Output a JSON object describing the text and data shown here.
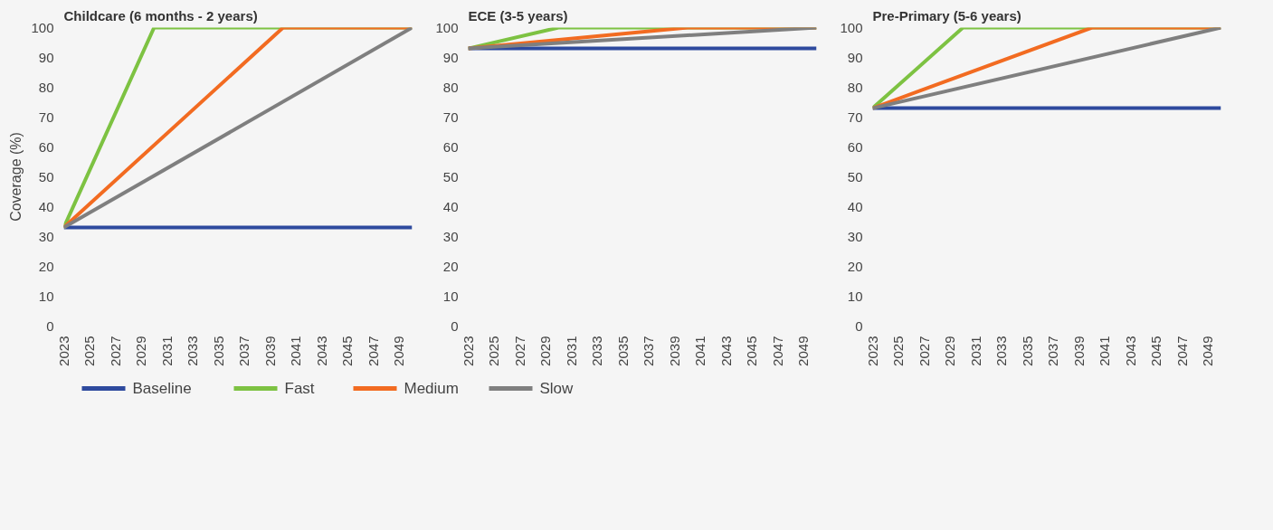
{
  "chart_data": [
    {
      "type": "line",
      "title": "Childcare (6 months - 2 years)",
      "ylabel": "Coverage (%)",
      "xlim": [
        2023,
        2050
      ],
      "xticks": [
        2023,
        2025,
        2027,
        2029,
        2031,
        2033,
        2035,
        2037,
        2039,
        2041,
        2043,
        2045,
        2047,
        2049
      ],
      "ylim": [
        0,
        100
      ],
      "yticks": [
        0,
        10,
        20,
        30,
        40,
        50,
        60,
        70,
        80,
        90,
        100
      ],
      "grid": false,
      "legend": "bottom",
      "series": [
        {
          "name": "Baseline",
          "color": "#2e4a9e",
          "x": [
            2023,
            2050
          ],
          "values": [
            33,
            33
          ]
        },
        {
          "name": "Fast",
          "color": "#7dc242",
          "x": [
            2023,
            2030,
            2050
          ],
          "values": [
            33,
            100,
            100
          ]
        },
        {
          "name": "Medium",
          "color": "#f26b21",
          "x": [
            2023,
            2040,
            2050
          ],
          "values": [
            33,
            100,
            100
          ]
        },
        {
          "name": "Slow",
          "color": "#7f7f7f",
          "x": [
            2023,
            2050
          ],
          "values": [
            33,
            100
          ]
        }
      ]
    },
    {
      "type": "line",
      "title": "ECE (3-5 years)",
      "xlim": [
        2023,
        2050
      ],
      "xticks": [
        2023,
        2025,
        2027,
        2029,
        2031,
        2033,
        2035,
        2037,
        2039,
        2041,
        2043,
        2045,
        2047,
        2049
      ],
      "ylim": [
        0,
        100
      ],
      "yticks": [
        0,
        10,
        20,
        30,
        40,
        50,
        60,
        70,
        80,
        90,
        100
      ],
      "grid": false,
      "series": [
        {
          "color": "#2e4a9e",
          "x": [
            2023,
            2050
          ],
          "values": [
            93,
            93
          ]
        },
        {
          "color": "#7dc242",
          "x": [
            2023,
            2030,
            2050
          ],
          "values": [
            93,
            100,
            100
          ]
        },
        {
          "color": "#f26b21",
          "x": [
            2023,
            2040,
            2050
          ],
          "values": [
            93,
            100,
            100
          ]
        },
        {
          "color": "#7f7f7f",
          "x": [
            2023,
            2050
          ],
          "values": [
            93,
            100
          ]
        }
      ]
    },
    {
      "type": "line",
      "title": "Pre-Primary (5-6 years)",
      "xlim": [
        2023,
        2050
      ],
      "xticks": [
        2023,
        2025,
        2027,
        2029,
        2031,
        2033,
        2035,
        2037,
        2039,
        2041,
        2043,
        2045,
        2047,
        2049
      ],
      "ylim": [
        0,
        100
      ],
      "yticks": [
        0,
        10,
        20,
        30,
        40,
        50,
        60,
        70,
        80,
        90,
        100
      ],
      "grid": false,
      "series": [
        {
          "color": "#2e4a9e",
          "x": [
            2023,
            2050
          ],
          "values": [
            73,
            73
          ]
        },
        {
          "color": "#7dc242",
          "x": [
            2023,
            2030,
            2050
          ],
          "values": [
            73,
            100,
            100
          ]
        },
        {
          "color": "#f26b21",
          "x": [
            2023,
            2040,
            2050
          ],
          "values": [
            73,
            100,
            100
          ]
        },
        {
          "color": "#7f7f7f",
          "x": [
            2023,
            2050
          ],
          "values": [
            73,
            100
          ]
        }
      ]
    }
  ]
}
